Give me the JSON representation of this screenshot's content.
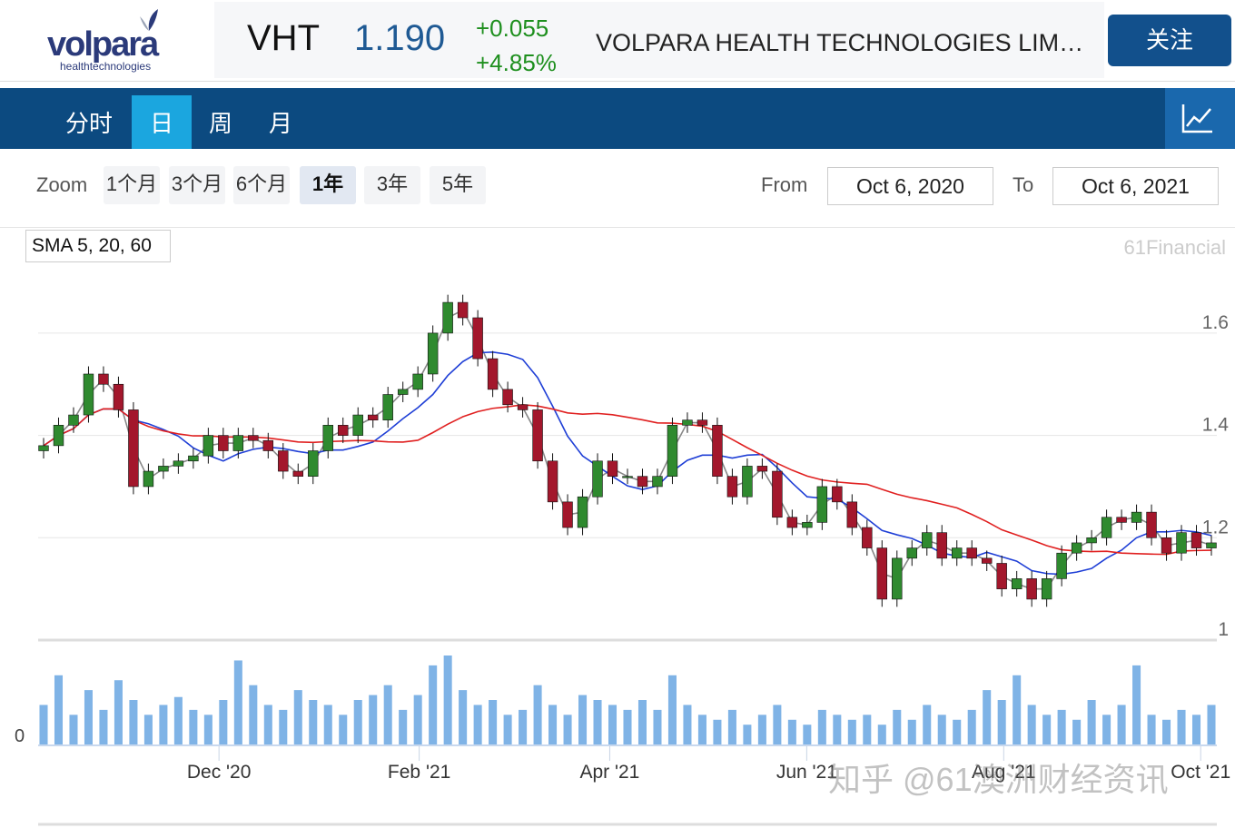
{
  "header": {
    "logo_text": "volpara",
    "logo_sub": "healthtechnologies",
    "symbol": "VHT",
    "price": "1.190",
    "change": "+0.055",
    "change_pct": "+4.85%",
    "company": "VOLPARA HEALTH TECHNOLOGIES LIM…",
    "follow_label": "关注"
  },
  "nav": {
    "tabs": [
      {
        "label": "分时"
      },
      {
        "label": "日"
      },
      {
        "label": "周"
      },
      {
        "label": "月"
      }
    ],
    "active": "日",
    "chart_icon": "line-chart-icon"
  },
  "zoom": {
    "label": "Zoom",
    "buttons": [
      {
        "label": "1个月"
      },
      {
        "label": "3个月"
      },
      {
        "label": "6个月"
      },
      {
        "label": "1年"
      },
      {
        "label": "3年"
      },
      {
        "label": "5年"
      }
    ],
    "selected": "1年",
    "from_label": "From",
    "from_value": "Oct 6, 2020",
    "to_label": "To",
    "to_value": "Oct 6, 2021"
  },
  "indicator_label": "SMA 5, 20, 60",
  "watermark": "61Financial",
  "overlay_watermark": "知乎 @61澳洲财经资讯",
  "colors": {
    "up": "#2f8a2f",
    "down": "#a3172c",
    "sma5": "#888888",
    "sma20": "#1f3fd6",
    "sma60": "#e02020",
    "volume": "#7fb3e6",
    "nav": "#0c4a80",
    "active_tab": "#1ba6df"
  },
  "chart_data": {
    "type": "candlestick",
    "x_range": [
      "2020-10-06",
      "2021-10-06"
    ],
    "xticks": [
      "Dec '20",
      "Feb '21",
      "Apr '21",
      "Jun '21",
      "Aug '21",
      "Oct '21"
    ],
    "yticks": [
      "1",
      "1.2",
      "1.4",
      "1.6"
    ],
    "ylim": [
      1.0,
      1.75
    ],
    "grid": true,
    "indicators": [
      "SMA 5",
      "SMA 20",
      "SMA 60"
    ],
    "close": [
      1.38,
      1.42,
      1.44,
      1.52,
      1.5,
      1.45,
      1.3,
      1.33,
      1.34,
      1.35,
      1.36,
      1.4,
      1.37,
      1.4,
      1.39,
      1.37,
      1.33,
      1.32,
      1.37,
      1.42,
      1.4,
      1.44,
      1.43,
      1.48,
      1.49,
      1.52,
      1.6,
      1.66,
      1.63,
      1.55,
      1.49,
      1.46,
      1.45,
      1.35,
      1.27,
      1.22,
      1.28,
      1.35,
      1.32,
      1.32,
      1.3,
      1.32,
      1.42,
      1.43,
      1.42,
      1.32,
      1.28,
      1.34,
      1.33,
      1.24,
      1.22,
      1.23,
      1.3,
      1.27,
      1.22,
      1.18,
      1.08,
      1.16,
      1.18,
      1.21,
      1.16,
      1.18,
      1.16,
      1.15,
      1.1,
      1.12,
      1.08,
      1.12,
      1.17,
      1.19,
      1.2,
      1.24,
      1.23,
      1.25,
      1.2,
      1.17,
      1.21,
      1.18,
      1.19
    ],
    "volume": [
      40,
      70,
      30,
      55,
      35,
      65,
      45,
      30,
      40,
      48,
      35,
      30,
      45,
      85,
      60,
      40,
      35,
      55,
      45,
      40,
      30,
      45,
      50,
      60,
      35,
      50,
      80,
      90,
      55,
      40,
      45,
      30,
      35,
      60,
      40,
      30,
      50,
      45,
      40,
      35,
      45,
      35,
      70,
      40,
      30,
      25,
      35,
      20,
      30,
      40,
      25,
      20,
      35,
      30,
      25,
      30,
      20,
      35,
      25,
      40,
      30,
      25,
      35,
      55,
      45,
      70,
      40,
      30,
      35,
      25,
      45,
      30,
      40,
      80,
      30,
      25,
      35,
      30,
      40
    ]
  }
}
